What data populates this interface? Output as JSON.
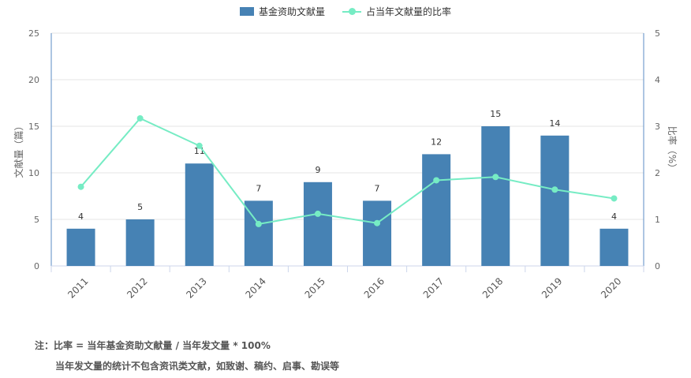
{
  "legend": {
    "bar_label": "基金资助文献量",
    "line_label": "占当年文献量的比率"
  },
  "chart_data": {
    "type": "bar",
    "categories": [
      "2011",
      "2012",
      "2013",
      "2014",
      "2015",
      "2016",
      "2017",
      "2018",
      "2019",
      "2020"
    ],
    "series": [
      {
        "name": "基金资助文献量",
        "type": "bar",
        "axis": "left",
        "color": "#4682b4",
        "values": [
          4,
          5,
          11,
          7,
          9,
          7,
          12,
          15,
          14,
          4
        ]
      },
      {
        "name": "占当年文献量的比率",
        "type": "line",
        "axis": "right",
        "color": "#76ecc4",
        "values": [
          1.7,
          3.17,
          2.58,
          0.9,
          1.12,
          0.92,
          1.84,
          1.91,
          1.64,
          1.45
        ]
      }
    ],
    "ylabel": "文献量（篇）",
    "y2label": "比率（%）",
    "ylim": [
      0,
      25
    ],
    "y2lim": [
      0,
      5
    ],
    "yticks": [
      "0",
      "5",
      "10",
      "15",
      "20",
      "25"
    ],
    "y2ticks": [
      "0",
      "1",
      "2",
      "3",
      "4",
      "5"
    ],
    "grid": true
  },
  "note": {
    "line1": "注：比率 = 当年基金资助文献量 / 当年发文量 * 100%",
    "line2": "当年发文量的统计不包含资讯类文献，如致谢、稿约、启事、勘误等"
  }
}
